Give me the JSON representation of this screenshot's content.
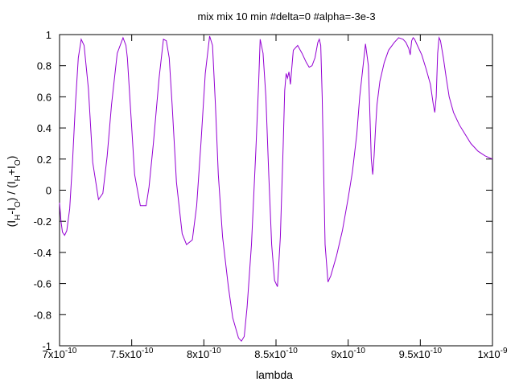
{
  "chart_data": {
    "type": "line",
    "title": "mix mix 10 min #delta=0 #alpha=-3e-3",
    "xlabel": "lambda",
    "ylabel_parts": [
      "(I",
      "H",
      "-I",
      "O",
      ") / (I",
      "H",
      "+I",
      "O",
      ")"
    ],
    "xlim": [
      7e-10,
      1e-09
    ],
    "ylim": [
      -1,
      1
    ],
    "x_ticks": [
      7e-10,
      7.5e-10,
      8e-10,
      8.5e-10,
      9e-10,
      9.5e-10,
      1e-09
    ],
    "x_tick_labels": [
      {
        "mant": "7x10",
        "exp": "-10"
      },
      {
        "mant": "7.5x10",
        "exp": "-10"
      },
      {
        "mant": "8x10",
        "exp": "-10"
      },
      {
        "mant": "8.5x10",
        "exp": "-10"
      },
      {
        "mant": "9x10",
        "exp": "-10"
      },
      {
        "mant": "9.5x10",
        "exp": "-10"
      },
      {
        "mant": "1x10",
        "exp": "-9"
      }
    ],
    "y_ticks": [
      -1,
      -0.8,
      -0.6,
      -0.4,
      -0.2,
      0,
      0.2,
      0.4,
      0.6,
      0.8,
      1
    ],
    "y_tick_labels": [
      "-1",
      "-0.8",
      "-0.6",
      "-0.4",
      "-0.2",
      "0",
      "0.2",
      "0.4",
      "0.6",
      "0.8",
      "1"
    ],
    "grid": false,
    "line_color": "#9400d3",
    "series": [
      {
        "x": [
          7e-10,
          7.01e-10,
          7.02e-10,
          7.035e-10,
          7.05e-10,
          7.07e-10,
          7.09e-10,
          7.11e-10,
          7.13e-10,
          7.15e-10,
          7.17e-10,
          7.2e-10,
          7.23e-10,
          7.27e-10,
          7.3e-10,
          7.33e-10,
          7.36e-10,
          7.4e-10,
          7.44e-10,
          7.46e-10,
          7.47e-10,
          7.49e-10,
          7.52e-10,
          7.56e-10,
          7.6e-10,
          7.62e-10,
          7.65e-10,
          7.69e-10,
          7.72e-10,
          7.74e-10,
          7.76e-10,
          7.78e-10,
          7.81e-10,
          7.85e-10,
          7.88e-10,
          7.92e-10,
          7.95e-10,
          7.98e-10,
          8.01e-10,
          8.04e-10,
          8.06e-10,
          8.08e-10,
          8.1e-10,
          8.13e-10,
          8.17e-10,
          8.2e-10,
          8.24e-10,
          8.26e-10,
          8.28e-10,
          8.3e-10,
          8.33e-10,
          8.36e-10,
          8.38e-10,
          8.39e-10,
          8.41e-10,
          8.43e-10,
          8.45e-10,
          8.47e-10,
          8.49e-10,
          8.51e-10,
          8.53e-10,
          8.55e-10,
          8.56e-10,
          8.57e-10,
          8.58e-10,
          8.59e-10,
          8.6e-10,
          8.62e-10,
          8.65e-10,
          8.68e-10,
          8.71e-10,
          8.73e-10,
          8.75e-10,
          8.77e-10,
          8.78e-10,
          8.79e-10,
          8.8e-10,
          8.81e-10,
          8.82e-10,
          8.84e-10,
          8.86e-10,
          8.88e-10,
          8.92e-10,
          8.96e-10,
          9e-10,
          9.03e-10,
          9.06e-10,
          9.08e-10,
          9.12e-10,
          9.14e-10,
          9.16e-10,
          9.17e-10,
          9.18e-10,
          9.19e-10,
          9.2e-10,
          9.22e-10,
          9.25e-10,
          9.28e-10,
          9.32e-10,
          9.35e-10,
          9.38e-10,
          9.4e-10,
          9.42e-10,
          9.43e-10,
          9.44e-10,
          9.45e-10,
          9.46e-10,
          9.48e-10,
          9.51e-10,
          9.54e-10,
          9.57e-10,
          9.59e-10,
          9.6e-10,
          9.61e-10,
          9.62e-10,
          9.63e-10,
          9.64e-10,
          9.66e-10,
          9.68e-10,
          9.7e-10,
          9.73e-10,
          9.77e-10,
          9.81e-10,
          9.85e-10,
          9.9e-10,
          9.95e-10,
          1e-09
        ],
        "y": [
          -0.08,
          -0.2,
          -0.27,
          -0.29,
          -0.26,
          -0.12,
          0.18,
          0.55,
          0.85,
          0.97,
          0.93,
          0.65,
          0.18,
          -0.06,
          -0.02,
          0.22,
          0.55,
          0.88,
          0.98,
          0.93,
          0.85,
          0.55,
          0.1,
          -0.1,
          -0.1,
          0.02,
          0.3,
          0.72,
          0.97,
          0.96,
          0.85,
          0.55,
          0.05,
          -0.28,
          -0.35,
          -0.32,
          -0.1,
          0.3,
          0.75,
          0.99,
          0.93,
          0.55,
          0.1,
          -0.3,
          -0.62,
          -0.82,
          -0.95,
          -0.97,
          -0.94,
          -0.75,
          -0.35,
          0.25,
          0.7,
          0.97,
          0.88,
          0.6,
          0.1,
          -0.35,
          -0.58,
          -0.62,
          -0.3,
          0.3,
          0.64,
          0.75,
          0.72,
          0.76,
          0.68,
          0.9,
          0.93,
          0.88,
          0.82,
          0.79,
          0.8,
          0.85,
          0.9,
          0.95,
          0.97,
          0.93,
          0.6,
          -0.35,
          -0.59,
          -0.55,
          -0.42,
          -0.26,
          -0.05,
          0.12,
          0.36,
          0.6,
          0.94,
          0.8,
          0.2,
          0.1,
          0.22,
          0.4,
          0.55,
          0.7,
          0.82,
          0.9,
          0.95,
          0.98,
          0.97,
          0.95,
          0.91,
          0.87,
          0.96,
          0.98,
          0.97,
          0.93,
          0.87,
          0.78,
          0.68,
          0.55,
          0.5,
          0.6,
          0.88,
          0.98,
          0.96,
          0.85,
          0.72,
          0.6,
          0.5,
          0.42,
          0.36,
          0.3,
          0.25,
          0.22,
          0.2
        ]
      }
    ]
  }
}
